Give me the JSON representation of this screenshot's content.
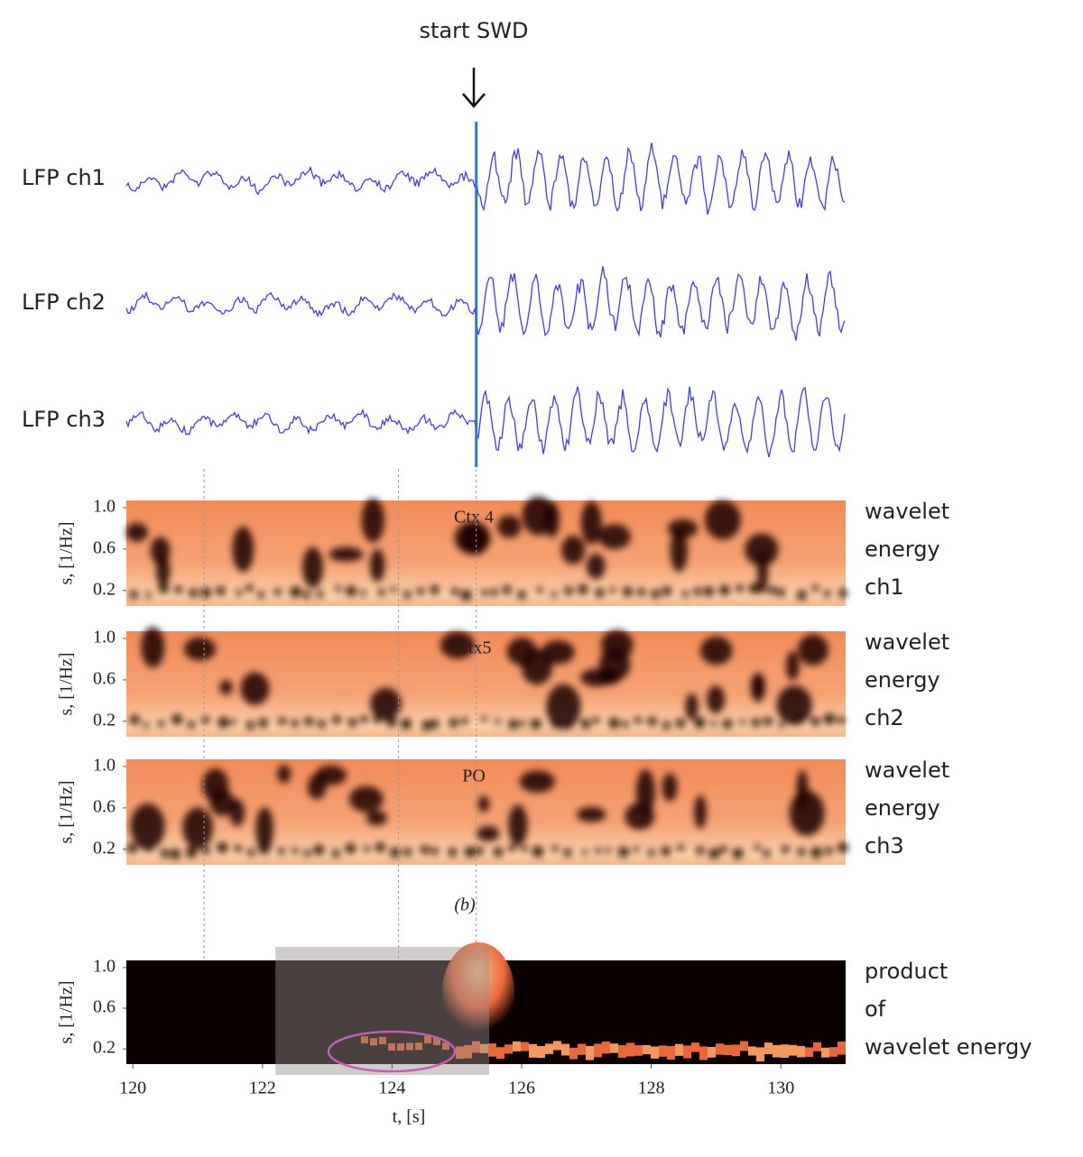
{
  "annotation": "start SWD",
  "panel_label": "(b)",
  "chart_data": [
    {
      "type": "trace",
      "labels": [
        "LFP ch1",
        "LFP ch2",
        "LFP ch3"
      ],
      "color": "#3d3dff",
      "marker_color": "#2f76d8",
      "swd_start": 125.3,
      "xlim": [
        119.9,
        131
      ]
    },
    {
      "type": "heatmap",
      "ylabel": "s, [1/Hz]",
      "ylim": [
        0.05,
        1.07
      ],
      "yticks": [
        0.2,
        0.6,
        {
          "value": 1,
          "label": "1.0"
        }
      ],
      "xlim": [
        119.9,
        131
      ],
      "panels": [
        {
          "title": "Ctx 4",
          "side_label": [
            "wavelet",
            "energy",
            "ch1"
          ]
        },
        {
          "title": "Ctx5",
          "side_label": [
            "wavelet",
            "energy",
            "ch2"
          ]
        },
        {
          "title": "PO",
          "side_label": [
            "wavelet",
            "energy",
            "ch3"
          ]
        }
      ]
    },
    {
      "type": "product",
      "ylabel": "s, [1/Hz]",
      "ylim": [
        0.05,
        1.07
      ],
      "yticks": [
        0.2,
        0.6,
        {
          "value": 1,
          "label": "1.0"
        }
      ],
      "xlim": [
        119.9,
        131
      ],
      "xticks": [
        120,
        122,
        124,
        126,
        128,
        130
      ],
      "xlabel": "t, [s]",
      "side_label": [
        "product",
        "of",
        "wavelet energy"
      ],
      "highlight": [
        122.2,
        125.5
      ],
      "vlines": [
        121.1,
        124.1,
        125.3
      ]
    }
  ]
}
